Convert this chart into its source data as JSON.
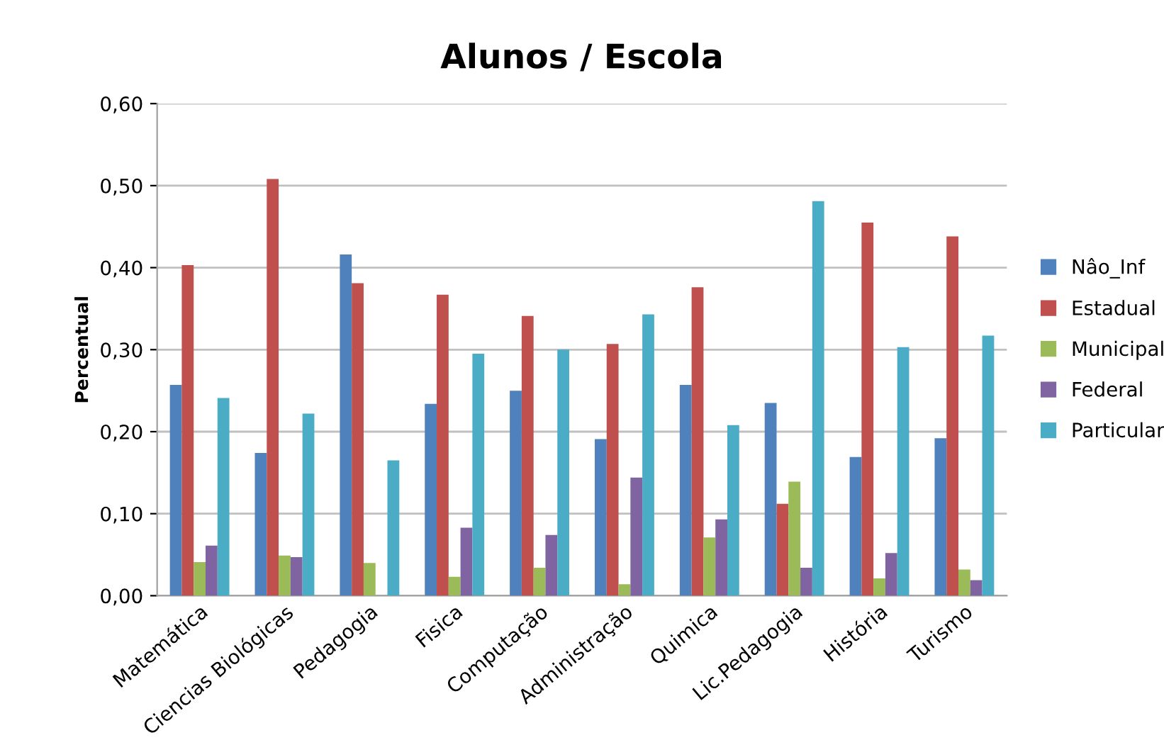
{
  "chart_data": {
    "type": "bar",
    "title": "Alunos / Escola",
    "ylabel": "Percentual",
    "categories": [
      "Matemática",
      "Ciencias Biológicas",
      "Pedagogia",
      "Fisica",
      "Computação",
      "Administração",
      "Quimica",
      "Lic.Pedagogia",
      "História",
      "Turismo"
    ],
    "series": [
      {
        "name": "Nâo_Inf",
        "color": "#4f81bd",
        "values": [
          0.257,
          0.174,
          0.416,
          0.234,
          0.25,
          0.191,
          0.257,
          0.235,
          0.169,
          0.192
        ]
      },
      {
        "name": "Estadual",
        "color": "#c0504d",
        "values": [
          0.403,
          0.508,
          0.381,
          0.367,
          0.341,
          0.307,
          0.376,
          0.112,
          0.455,
          0.438
        ]
      },
      {
        "name": "Municipal",
        "color": "#9bbb59",
        "values": [
          0.041,
          0.049,
          0.04,
          0.023,
          0.034,
          0.014,
          0.071,
          0.139,
          0.021,
          0.032
        ]
      },
      {
        "name": "Federal",
        "color": "#8064a2",
        "values": [
          0.061,
          0.047,
          0,
          0.083,
          0.074,
          0.144,
          0.093,
          0.034,
          0.052,
          0.019
        ]
      },
      {
        "name": "Particular",
        "color": "#4bacc6",
        "values": [
          0.241,
          0.222,
          0.165,
          0.295,
          0.3,
          0.343,
          0.208,
          0.481,
          0.303,
          0.317
        ]
      }
    ],
    "ylim": [
      0,
      0.6
    ],
    "yticks": [
      {
        "value": 0,
        "label": "0,00"
      },
      {
        "value": 0.1,
        "label": "0,10"
      },
      {
        "value": 0.2,
        "label": "0,20"
      },
      {
        "value": 0.3,
        "label": "0,30"
      },
      {
        "value": 0.4,
        "label": "0,40"
      },
      {
        "value": 0.5,
        "label": "0,50"
      },
      {
        "value": 0.6,
        "label": "0,60"
      }
    ],
    "grid": "y",
    "legend": "right"
  }
}
